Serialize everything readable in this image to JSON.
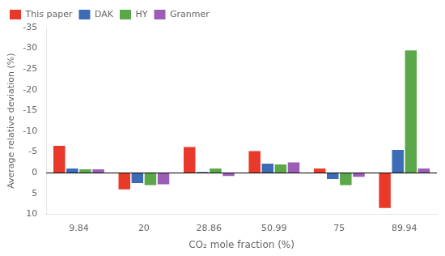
{
  "chart_data": {
    "type": "bar",
    "categories": [
      "9.84",
      "20",
      "28.86",
      "50.99",
      "75",
      "89.94"
    ],
    "series": [
      {
        "name": "This paper",
        "color": "#E8392A",
        "values": [
          -6.5,
          4.0,
          -6.2,
          -5.2,
          -1.0,
          8.5
        ]
      },
      {
        "name": "DAK",
        "color": "#3B6CB5",
        "values": [
          -1.0,
          2.5,
          -0.2,
          -2.2,
          1.5,
          -5.5
        ]
      },
      {
        "name": "HY",
        "color": "#5AA84A",
        "values": [
          -0.8,
          3.0,
          -1.0,
          -2.0,
          3.0,
          -29.5
        ]
      },
      {
        "name": "Granmer",
        "color": "#9B5DB5",
        "values": [
          -0.8,
          2.8,
          0.8,
          -2.5,
          1.0,
          -1.0
        ]
      }
    ],
    "xlabel": "CO₂ mole fraction (%)",
    "ylabel": "Average relative deviation (%)",
    "ylim": [
      10,
      -35
    ],
    "yticks": [
      -35,
      -30,
      -25,
      -20,
      -15,
      -10,
      -5,
      0,
      5,
      10
    ],
    "grid": false,
    "legend": "upper left"
  }
}
